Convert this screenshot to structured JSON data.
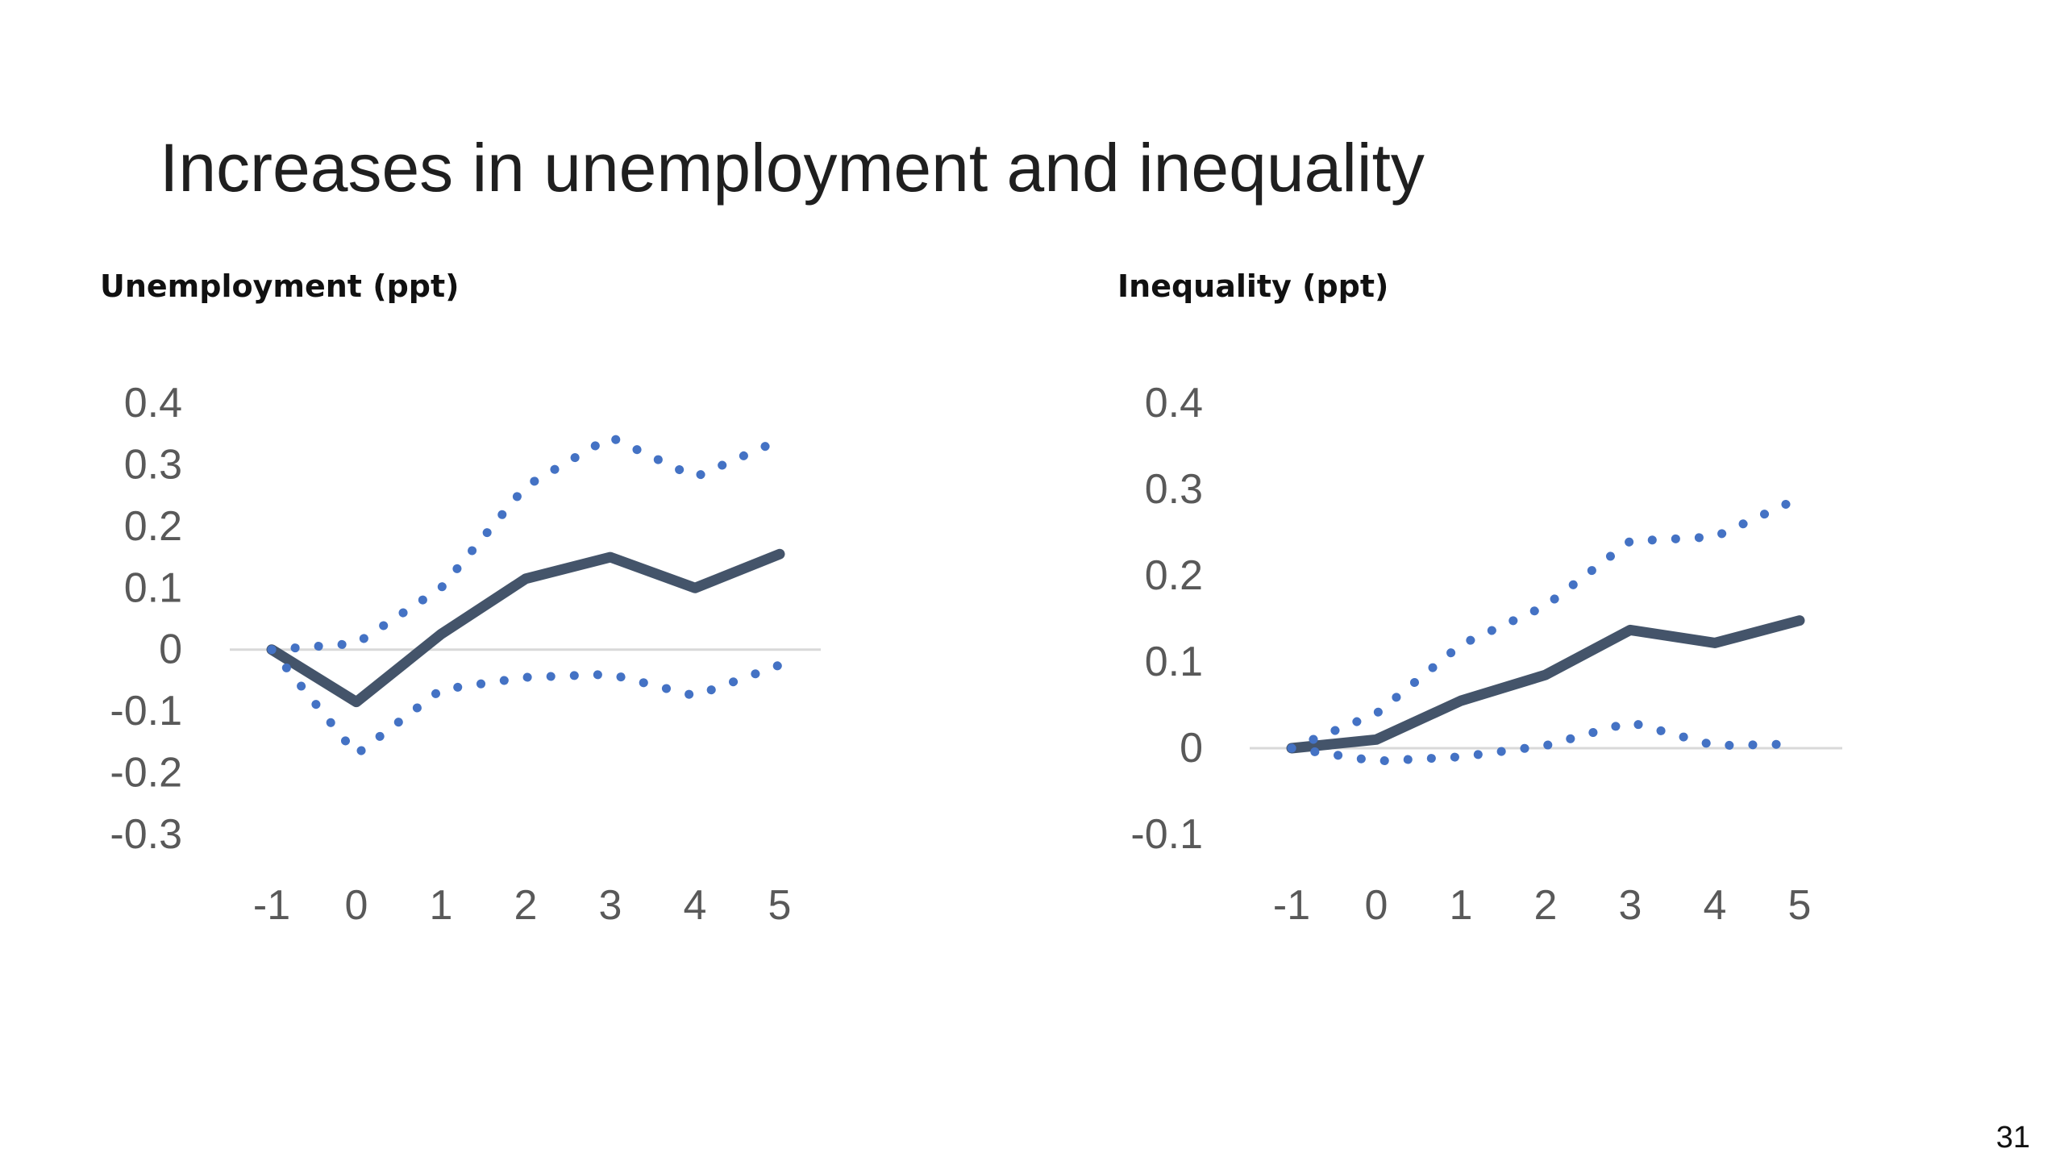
{
  "slide": {
    "title": "Increases in unemployment and inequality",
    "page_number": "31"
  },
  "colors": {
    "point_estimate": "#44546a",
    "confidence_band": "#4472c4",
    "zero_line": "#d9d9d9",
    "tick_text": "#595959"
  },
  "chart_data": [
    {
      "type": "line",
      "title": "Unemployment (ppt)",
      "xlabel": "",
      "ylabel": "",
      "x": [
        -1,
        0,
        1,
        2,
        3,
        4,
        5
      ],
      "ylim": [
        -0.3,
        0.4
      ],
      "yticks": [
        "0.4",
        "0.3",
        "0.2",
        "0.1",
        "0",
        "-0.1",
        "-0.2",
        "-0.3"
      ],
      "ytick_values": [
        0.4,
        0.3,
        0.2,
        0.1,
        0,
        -0.1,
        -0.2,
        -0.3
      ],
      "xticks": [
        "-1",
        "0",
        "1",
        "2",
        "3",
        "4",
        "5"
      ],
      "series": [
        {
          "style": "solid",
          "values": [
            0,
            -0.085,
            0.025,
            0.115,
            0.15,
            0.1,
            0.155
          ]
        },
        {
          "style": "dotted",
          "values": [
            0,
            0.01,
            0.1,
            0.265,
            0.345,
            0.28,
            0.34
          ]
        },
        {
          "style": "dotted",
          "values": [
            0,
            -0.17,
            -0.065,
            -0.045,
            -0.04,
            -0.075,
            -0.025
          ]
        }
      ],
      "zero_line": true,
      "grid": false,
      "legend": "none"
    },
    {
      "type": "line",
      "title": "Inequality (ppt)",
      "xlabel": "",
      "ylabel": "",
      "x": [
        -1,
        0,
        1,
        2,
        3,
        4,
        5
      ],
      "ylim": [
        -0.1,
        0.4
      ],
      "yticks": [
        "0.4",
        "0.3",
        "0.2",
        "0.1",
        "0",
        "-0.1"
      ],
      "ytick_values": [
        0.4,
        0.3,
        0.2,
        0.1,
        0,
        -0.1
      ],
      "xticks": [
        "-1",
        "0",
        "1",
        "2",
        "3",
        "4",
        "5"
      ],
      "series": [
        {
          "style": "solid",
          "values": [
            0,
            0.01,
            0.055,
            0.085,
            0.137,
            0.122,
            0.148
          ]
        },
        {
          "style": "dotted",
          "values": [
            0,
            0.04,
            0.12,
            0.165,
            0.24,
            0.245,
            0.29
          ]
        },
        {
          "style": "dotted",
          "values": [
            0,
            -0.015,
            -0.01,
            0.003,
            0.03,
            0.003,
            0.005
          ]
        }
      ],
      "zero_line": true,
      "grid": false,
      "legend": "none"
    }
  ]
}
